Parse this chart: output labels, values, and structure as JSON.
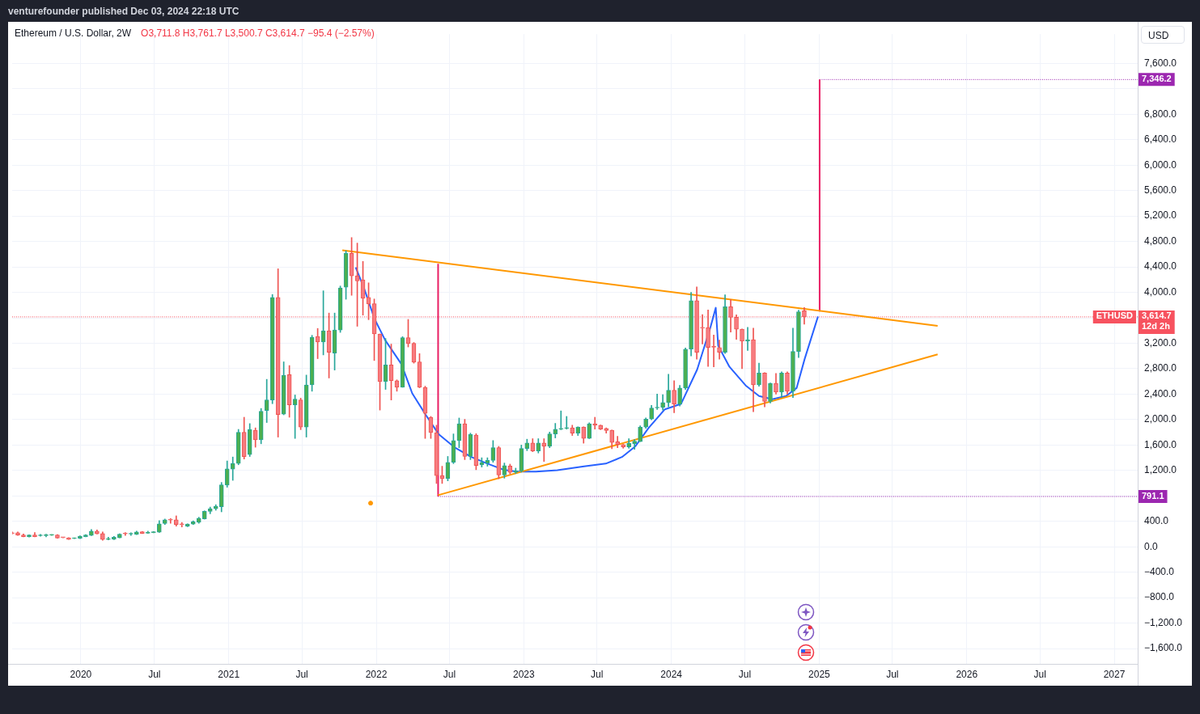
{
  "chart_data": {
    "type": "candlestick",
    "title": "Ethereum / U.S. Dollar, 2W",
    "subtitle": "venturefounder published Dec 03, 2024 22:18 UTC",
    "ylabel": "USD",
    "annotations": [
      "O3,711.8 H3,761.7 L3,500.7 C3,614.7 −95.4 (−2.57%)",
      {
        "text": "ETHUSD",
        "x": "2027-02-28",
        "y": 3614.7
      }
    ],
    "x": [
      "2019-07-15",
      "2019-07-29",
      "2019-08-12",
      "2019-08-26",
      "2019-09-09",
      "2019-09-23",
      "2019-10-07",
      "2019-10-21",
      "2019-11-04",
      "2019-11-18",
      "2019-12-02",
      "2019-12-16",
      "2019-12-30",
      "2020-01-13",
      "2020-01-27",
      "2020-02-10",
      "2020-02-24",
      "2020-03-09",
      "2020-03-23",
      "2020-04-06",
      "2020-04-20",
      "2020-05-04",
      "2020-05-18",
      "2020-06-01",
      "2020-06-15",
      "2020-06-29",
      "2020-07-13",
      "2020-07-27",
      "2020-08-10",
      "2020-08-24",
      "2020-09-07",
      "2020-09-21",
      "2020-10-05",
      "2020-10-19",
      "2020-11-02",
      "2020-11-16",
      "2020-11-30",
      "2020-12-14",
      "2020-12-28",
      "2021-01-11",
      "2021-01-25",
      "2021-02-08",
      "2021-02-22",
      "2021-03-08",
      "2021-03-22",
      "2021-04-05",
      "2021-04-19",
      "2021-05-03",
      "2021-05-17",
      "2021-05-31",
      "2021-06-14",
      "2021-06-28",
      "2021-07-12",
      "2021-07-26",
      "2021-08-09",
      "2021-08-23",
      "2021-09-06",
      "2021-09-20",
      "2021-10-04",
      "2021-10-18",
      "2021-11-01",
      "2021-11-15",
      "2021-11-29",
      "2021-12-13",
      "2021-12-27",
      "2022-01-10",
      "2022-01-24",
      "2022-02-07",
      "2022-02-21",
      "2022-03-07",
      "2022-03-21",
      "2022-04-04",
      "2022-04-18",
      "2022-05-02",
      "2022-05-16",
      "2022-05-30",
      "2022-06-13",
      "2022-06-27",
      "2022-07-11",
      "2022-07-25",
      "2022-08-08",
      "2022-08-22",
      "2022-09-05",
      "2022-09-19",
      "2022-10-03",
      "2022-10-17",
      "2022-10-31",
      "2022-11-14",
      "2022-11-28",
      "2022-12-12",
      "2022-12-26",
      "2023-01-09",
      "2023-01-23",
      "2023-02-06",
      "2023-02-20",
      "2023-03-06",
      "2023-03-20",
      "2023-04-03",
      "2023-04-17",
      "2023-05-01",
      "2023-05-15",
      "2023-05-29",
      "2023-06-12",
      "2023-06-26",
      "2023-07-10",
      "2023-07-24",
      "2023-08-07",
      "2023-08-21",
      "2023-09-04",
      "2023-09-18",
      "2023-10-02",
      "2023-10-16",
      "2023-10-30",
      "2023-11-13",
      "2023-11-27",
      "2023-12-11",
      "2023-12-25",
      "2024-01-08",
      "2024-01-22",
      "2024-02-05",
      "2024-02-19",
      "2024-03-04",
      "2024-03-18",
      "2024-04-01",
      "2024-04-15",
      "2024-04-29",
      "2024-05-13",
      "2024-05-27",
      "2024-06-10",
      "2024-06-24",
      "2024-07-08",
      "2024-07-22",
      "2024-08-05",
      "2024-08-19",
      "2024-09-02",
      "2024-09-16",
      "2024-09-30",
      "2024-10-14",
      "2024-10-28",
      "2024-11-11",
      "2024-11-25"
    ],
    "ohlc": [
      [
        220,
        235,
        200,
        210
      ],
      [
        221,
        233,
        178,
        185
      ],
      [
        188,
        204,
        158,
        160
      ],
      [
        158,
        190,
        155,
        188
      ],
      [
        188,
        225,
        158,
        160
      ],
      [
        175,
        196,
        167,
        180
      ],
      [
        176,
        200,
        158,
        180
      ],
      [
        183,
        188,
        180,
        187
      ],
      [
        187,
        192,
        135,
        137
      ],
      [
        146,
        150,
        140,
        144
      ],
      [
        142,
        146,
        115,
        117
      ],
      [
        130,
        135,
        128,
        134
      ],
      [
        133,
        175,
        128,
        167
      ],
      [
        160,
        192,
        156,
        188
      ],
      [
        179,
        271,
        175,
        246
      ],
      [
        246,
        267,
        200,
        204
      ],
      [
        208,
        233,
        104,
        117
      ],
      [
        117,
        150,
        108,
        125
      ],
      [
        120,
        163,
        112,
        150
      ],
      [
        142,
        205,
        140,
        200
      ],
      [
        208,
        225,
        179,
        204
      ],
      [
        200,
        221,
        179,
        208
      ],
      [
        196,
        246,
        192,
        233
      ],
      [
        237,
        242,
        208,
        212
      ],
      [
        215,
        246,
        210,
        220
      ],
      [
        225,
        240,
        220,
        235
      ],
      [
        229,
        412,
        225,
        362
      ],
      [
        366,
        437,
        350,
        425
      ],
      [
        433,
        445,
        370,
        420
      ],
      [
        425,
        487,
        325,
        350
      ],
      [
        360,
        383,
        312,
        350
      ],
      [
        325,
        362,
        316,
        358
      ],
      [
        358,
        408,
        350,
        395
      ],
      [
        387,
        465,
        370,
        450
      ],
      [
        441,
        566,
        435,
        558
      ],
      [
        558,
        625,
        520,
        600
      ],
      [
        600,
        662,
        575,
        637
      ],
      [
        629,
        1012,
        550,
        975
      ],
      [
        970,
        1350,
        937,
        1225
      ],
      [
        1220,
        1412,
        1045,
        1312
      ],
      [
        1310,
        1846,
        1290,
        1800
      ],
      [
        1800,
        2037,
        1380,
        1420
      ],
      [
        1450,
        1937,
        1420,
        1846
      ],
      [
        1833,
        1870,
        1566,
        1683
      ],
      [
        1683,
        2175,
        1620,
        2133
      ],
      [
        2142,
        2633,
        1954,
        2308
      ],
      [
        2308,
        3967,
        2250,
        3921
      ],
      [
        3921,
        4371,
        1725,
        2079
      ],
      [
        2087,
        2908,
        2075,
        2696
      ],
      [
        2708,
        2850,
        2037,
        2233
      ],
      [
        2233,
        2387,
        1704,
        2321
      ],
      [
        2308,
        2338,
        1842,
        1883
      ],
      [
        1883,
        2700,
        1725,
        2546
      ],
      [
        2546,
        3325,
        2446,
        3296
      ],
      [
        3308,
        3433,
        2958,
        3221
      ],
      [
        3221,
        4025,
        3017,
        3396
      ],
      [
        3396,
        3675,
        2654,
        3058
      ],
      [
        3046,
        3675,
        2779,
        3408
      ],
      [
        3408,
        4100,
        3371,
        4071
      ],
      [
        4083,
        4654,
        3892,
        4612
      ],
      [
        4612,
        4862,
        3954,
        4258
      ],
      [
        4262,
        4775,
        3467,
        4179
      ],
      [
        4196,
        4487,
        3642,
        3908
      ],
      [
        3921,
        4150,
        3571,
        3817
      ],
      [
        3821,
        3896,
        2929,
        3346
      ],
      [
        3346,
        3346,
        2150,
        2596
      ],
      [
        2596,
        3275,
        2475,
        2858
      ],
      [
        2858,
        3187,
        2308,
        2612
      ],
      [
        2612,
        2625,
        2446,
        2508
      ],
      [
        2508,
        3304,
        2508,
        3287
      ],
      [
        3287,
        3575,
        3142,
        3196
      ],
      [
        3200,
        3212,
        2887,
        2904
      ],
      [
        2908,
        3037,
        2500,
        2508
      ],
      [
        2508,
        2525,
        1704,
        2100
      ],
      [
        2037,
        2050,
        1704,
        1796
      ],
      [
        1796,
        1912,
        996,
        1121
      ],
      [
        1121,
        1267,
        996,
        1071
      ],
      [
        1071,
        1421,
        1037,
        1329
      ],
      [
        1329,
        1775,
        1308,
        1671
      ],
      [
        1671,
        2025,
        1558,
        1933
      ],
      [
        1933,
        2004,
        1371,
        1421
      ],
      [
        1421,
        1787,
        1371,
        1767
      ],
      [
        1758,
        1779,
        1212,
        1279
      ],
      [
        1287,
        1400,
        1254,
        1329
      ],
      [
        1317,
        1400,
        1267,
        1358
      ],
      [
        1358,
        1671,
        1329,
        1558
      ],
      [
        1558,
        1579,
        1071,
        1129
      ],
      [
        1129,
        1317,
        1079,
        1275
      ],
      [
        1270,
        1300,
        1146,
        1171
      ],
      [
        1171,
        1237,
        1154,
        1196
      ],
      [
        1192,
        1600,
        1175,
        1546
      ],
      [
        1546,
        1692,
        1512,
        1633
      ],
      [
        1633,
        1700,
        1496,
        1508
      ],
      [
        1508,
        1700,
        1475,
        1633
      ],
      [
        1633,
        1700,
        1342,
        1579
      ],
      [
        1579,
        1804,
        1558,
        1775
      ],
      [
        1775,
        1941,
        1712,
        1850
      ],
      [
        1850,
        2137,
        1840,
        1862
      ],
      [
        1862,
        2050,
        1850,
        1866
      ],
      [
        1871,
        1912,
        1750,
        1787
      ],
      [
        1787,
        1887,
        1750,
        1883
      ],
      [
        1883,
        1887,
        1629,
        1704
      ],
      [
        1704,
        1950,
        1700,
        1933
      ],
      [
        1933,
        2037,
        1850,
        1912
      ],
      [
        1912,
        1915,
        1842,
        1850
      ],
      [
        1862,
        1870,
        1787,
        1829
      ],
      [
        1833,
        1837,
        1542,
        1642
      ],
      [
        1650,
        1737,
        1558,
        1608
      ],
      [
        1608,
        1612,
        1550,
        1571
      ],
      [
        1571,
        1700,
        1550,
        1625
      ],
      [
        1621,
        1687,
        1533,
        1662
      ],
      [
        1654,
        1904,
        1654,
        1883
      ],
      [
        1883,
        2025,
        1862,
        2008
      ],
      [
        2008,
        2225,
        1997,
        2183
      ],
      [
        2183,
        2400,
        2158,
        2190
      ],
      [
        2190,
        2392,
        2150,
        2267
      ],
      [
        2267,
        2712,
        2200,
        2462
      ],
      [
        2462,
        2612,
        2108,
        2246
      ],
      [
        2246,
        2537,
        2212,
        2496
      ],
      [
        2496,
        3125,
        2475,
        3108
      ],
      [
        3108,
        4000,
        3000,
        3871
      ],
      [
        3871,
        4087,
        2950,
        3058
      ],
      [
        3450,
        3650,
        3187,
        3437
      ],
      [
        3446,
        3725,
        2837,
        3133
      ],
      [
        3150,
        3329,
        2829,
        3137
      ],
      [
        3133,
        3250,
        2950,
        3058
      ],
      [
        3058,
        3962,
        3040,
        3775
      ],
      [
        3775,
        3887,
        3375,
        3608
      ],
      [
        3608,
        3646,
        3262,
        3421
      ],
      [
        3421,
        3425,
        2800,
        3233
      ],
      [
        3233,
        3450,
        3087,
        3258
      ],
      [
        3258,
        3437,
        2125,
        2546
      ],
      [
        2546,
        2887,
        2525,
        2733
      ],
      [
        2733,
        2737,
        2200,
        2287
      ],
      [
        2287,
        2575,
        2262,
        2571
      ],
      [
        2571,
        2725,
        2400,
        2433
      ],
      [
        2433,
        2750,
        2350,
        2733
      ],
      [
        2733,
        2750,
        2400,
        2446
      ],
      [
        2446,
        3437,
        2346,
        3071
      ],
      [
        3071,
        3721,
        2975,
        3696
      ],
      [
        3711.8,
        3761.7,
        3500.7,
        3614.7
      ]
    ],
    "series": [
      {
        "type": "line",
        "color": "#ff9800",
        "x": [
          "2021-10-09",
          "2025-10-21"
        ],
        "values": [
          4662,
          3475
        ]
      },
      {
        "type": "line",
        "color": "#ff9800",
        "x": [
          "2022-06-03",
          "2025-10-21"
        ],
        "values": [
          812,
          3025
        ]
      },
      {
        "type": "line",
        "color": "#2962ff",
        "x": [
          "2021-11-11",
          "2021-12-01",
          "2021-12-28",
          "2022-01-23",
          "2022-03-04",
          "2022-03-31",
          "2022-05-03",
          "2022-06-05",
          "2022-07-15",
          "2022-08-24",
          "2022-10-03",
          "2022-11-12",
          "2022-12-15",
          "2023-01-31",
          "2023-03-25",
          "2023-05-30",
          "2023-07-23",
          "2023-09-01",
          "2023-10-04",
          "2023-11-06",
          "2023-12-16",
          "2024-01-25",
          "2024-03-05",
          "2024-04-07",
          "2024-04-20",
          "2024-04-26",
          "2024-05-24",
          "2024-07-03",
          "2024-08-05",
          "2024-09-07",
          "2024-10-11",
          "2024-11-06",
          "2024-11-26",
          "2024-12-29"
        ],
        "values": [
          4392,
          4079,
          3579,
          3250,
          2875,
          2412,
          2079,
          1766,
          1558,
          1412,
          1308,
          1212,
          1183,
          1183,
          1204,
          1266,
          1308,
          1412,
          1579,
          1871,
          2162,
          2246,
          2787,
          3454,
          3758,
          3162,
          2829,
          2537,
          2371,
          2321,
          2371,
          2496,
          2954,
          3621
        ]
      },
      {
        "type": "line",
        "color": "#e91e63",
        "x": [
          "2022-06-03",
          "2022-06-03"
        ],
        "values": [
          791.1,
          4450
        ]
      },
      {
        "type": "line",
        "color": "#e91e63",
        "x": [
          "2025-01-02",
          "2025-01-02"
        ],
        "values": [
          3700,
          7346.2
        ]
      },
      {
        "type": "line",
        "color": "#9c27b0",
        "line_style": "dotted",
        "x": [
          "2025-01-02",
          "2027-02-28"
        ],
        "values": [
          7346.2,
          7346.2
        ],
        "value_labels": [
          null,
          "7,346.2"
        ]
      },
      {
        "type": "line",
        "color": "#9c27b0",
        "line_style": "dotted",
        "x": [
          "2022-06-03",
          "2027-02-28"
        ],
        "values": [
          791.1,
          791.1
        ],
        "value_labels": [
          null,
          "791.1"
        ]
      },
      {
        "type": "scatter",
        "color": "#ff9800",
        "marker": "circle",
        "x": [
          "2021-12-18"
        ],
        "values": [
          687
        ]
      }
    ],
    "ref_lines": [
      {
        "axis": "y",
        "value": 3614.7,
        "label": "3,614.7\n12d 2h",
        "color": "#f7525f",
        "line_style": "dotted"
      }
    ],
    "xlim": [
      "2019-07-15",
      "2027-02-28"
    ],
    "xticks": [
      {
        "value": "2020-01-01",
        "label": "2020"
      },
      {
        "value": "2020-07-01",
        "label": "Jul"
      },
      {
        "value": "2021-01-01",
        "label": "2021"
      },
      {
        "value": "2021-07-01",
        "label": "Jul"
      },
      {
        "value": "2022-01-01",
        "label": "2022"
      },
      {
        "value": "2022-07-01",
        "label": "Jul"
      },
      {
        "value": "2023-01-01",
        "label": "2023"
      },
      {
        "value": "2023-07-01",
        "label": "Jul"
      },
      {
        "value": "2024-01-01",
        "label": "2024"
      },
      {
        "value": "2024-07-01",
        "label": "Jul"
      },
      {
        "value": "2025-01-01",
        "label": "2025"
      },
      {
        "value": "2025-07-01",
        "label": "Jul"
      },
      {
        "value": "2026-01-01",
        "label": "2026"
      },
      {
        "value": "2026-07-01",
        "label": "Jul"
      },
      {
        "value": "2027-01-01",
        "label": "2027"
      }
    ],
    "ylim": [
      -1840,
      8060
    ],
    "yticks": [
      {
        "value": -1600,
        "label": "−1,600.0"
      },
      {
        "value": -1200,
        "label": "−1,200.0"
      },
      {
        "value": -800,
        "label": "−800.0"
      },
      {
        "value": -400,
        "label": "−400.0"
      },
      {
        "value": 0,
        "label": "0.0"
      },
      {
        "value": 400,
        "label": "400.0"
      },
      {
        "value": 800,
        "label": null
      },
      {
        "value": 1200,
        "label": "1,200.0"
      },
      {
        "value": 1600,
        "label": "1,600.0"
      },
      {
        "value": 2000,
        "label": "2,000.0"
      },
      {
        "value": 2400,
        "label": "2,400.0"
      },
      {
        "value": 2800,
        "label": "2,800.0"
      },
      {
        "value": 3200,
        "label": "3,200.0"
      },
      {
        "value": 3600,
        "label": null
      },
      {
        "value": 4000,
        "label": "4,000.0"
      },
      {
        "value": 4400,
        "label": "4,400.0"
      },
      {
        "value": 4800,
        "label": "4,800.0"
      },
      {
        "value": 5200,
        "label": "5,200.0"
      },
      {
        "value": 5600,
        "label": "5,600.0"
      },
      {
        "value": 6000,
        "label": "6,000.0"
      },
      {
        "value": 6400,
        "label": "6,400.0"
      },
      {
        "value": 6800,
        "label": "6,800.0"
      },
      {
        "value": 7200,
        "label": null
      },
      {
        "value": 7600,
        "label": "7,600.0"
      }
    ],
    "grid": true
  }
}
